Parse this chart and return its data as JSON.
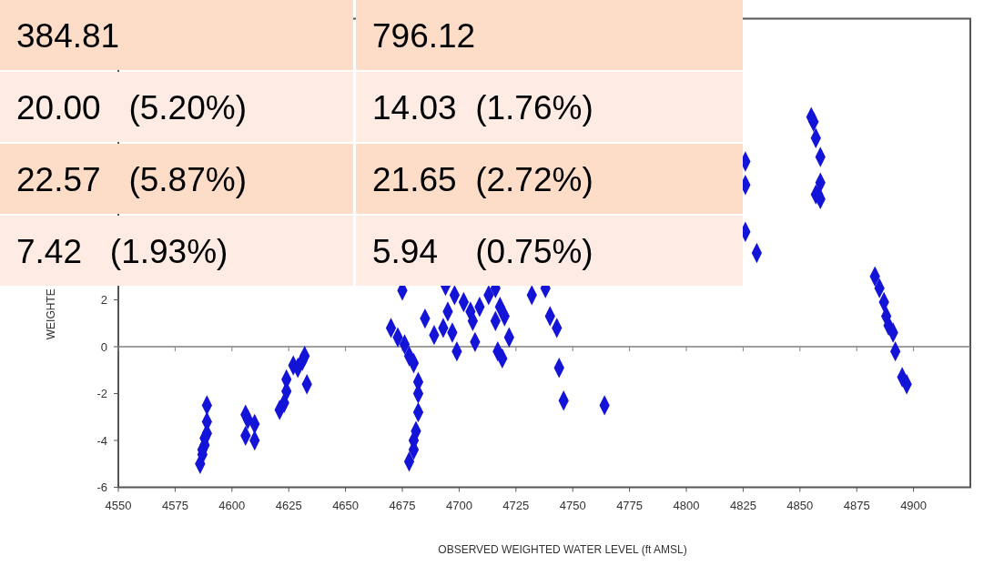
{
  "chart_data": [
    {
      "type": "other",
      "annotations": [
        "384.81",
        "796.12",
        "20.00   (5.20%)",
        "14.03  (1.76%)",
        "22.57   (5.87%)",
        "21.65  (2.72%)",
        "7.42   (1.93%)",
        "5.94    (0.75%)"
      ]
    },
    {
      "type": "scatter",
      "xlabel": "OBSERVED WEIGHTED WATER LEVEL (ft AMSL)",
      "ylabel": "WEIGHTE",
      "x": [
        4589,
        4589,
        4589,
        4588,
        4588,
        4587,
        4587,
        4586,
        4606,
        4607,
        4610,
        4606,
        4610,
        4621,
        4623,
        4624,
        4624,
        4627,
        4629,
        4631,
        4632,
        4633,
        4675,
        4670,
        4673,
        4676,
        4678,
        4680,
        4682,
        4682,
        4682,
        4681,
        4680,
        4680,
        4678,
        4685,
        4689,
        4693,
        4697,
        4699,
        4695,
        4694,
        4698,
        4702,
        4705,
        4706,
        4707,
        4709,
        4713,
        4716,
        4718,
        4716,
        4720,
        4722,
        4717,
        4719,
        4732,
        4738,
        4740,
        4743,
        4744,
        4746,
        4764,
        4855,
        4856,
        4857,
        4859,
        4859,
        4857,
        4859,
        4858,
        4826,
        4826,
        4826,
        4831,
        4883,
        4885,
        4887,
        4888,
        4889,
        4891,
        4892,
        4895,
        4897
      ],
      "values": [
        -2.5,
        -3.2,
        -3.7,
        -3.9,
        -4.2,
        -4.4,
        -4.6,
        -5.0,
        -2.9,
        -3.1,
        -3.3,
        -3.8,
        -4.0,
        -2.7,
        -2.4,
        -1.9,
        -1.4,
        -0.8,
        -0.9,
        -0.6,
        -0.4,
        -1.6,
        2.4,
        0.8,
        0.4,
        0.1,
        -0.4,
        -0.7,
        -1.5,
        -2.0,
        -2.8,
        -3.6,
        -4.0,
        -4.4,
        -4.9,
        1.2,
        0.5,
        0.8,
        0.6,
        -0.2,
        1.5,
        2.6,
        2.2,
        1.9,
        1.5,
        1.1,
        0.2,
        1.7,
        2.2,
        2.5,
        1.7,
        1.1,
        1.3,
        0.4,
        -0.2,
        -0.5,
        2.2,
        2.5,
        1.3,
        0.8,
        -0.9,
        -2.3,
        -2.5,
        9.8,
        9.6,
        8.9,
        8.1,
        7.0,
        6.5,
        6.3,
        6.5,
        7.9,
        6.9,
        4.9,
        4.0,
        3.0,
        2.5,
        1.9,
        1.3,
        0.9,
        0.6,
        -0.2,
        -1.3,
        -1.6
      ],
      "color": "#1414d8",
      "marker": "diamond",
      "xlim": [
        4550,
        4925
      ],
      "xticks": [
        4550,
        4575,
        4600,
        4625,
        4650,
        4675,
        4700,
        4725,
        4750,
        4775,
        4800,
        4825,
        4850,
        4875,
        4900
      ],
      "ylim": [
        -6,
        14
      ],
      "yticks": [
        -6,
        -4,
        -2,
        0,
        2
      ],
      "ref_lines": [
        {
          "axis": "y",
          "value": 0,
          "color": "#808080"
        }
      ],
      "grid": false
    }
  ]
}
